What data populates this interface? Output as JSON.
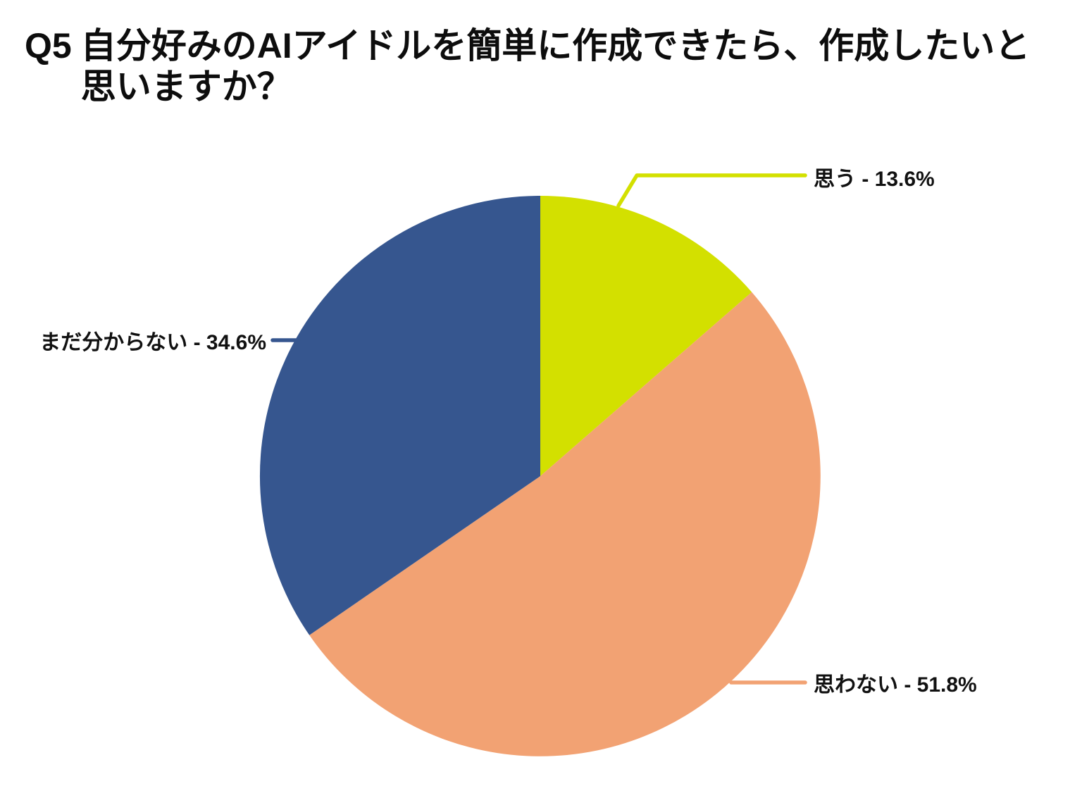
{
  "background": "#ffffff",
  "title": {
    "q_label": "Q5",
    "line1": "自分好みのAIアイドルを簡単に作成できたら、作成したいと",
    "line2": "思いますか？"
  },
  "chart_data": {
    "type": "pie",
    "title": "Q5 自分好みのAIアイドルを簡単に作成できたら、作成したいと思いますか？",
    "categories": [
      "思う",
      "思わない",
      "まだ分からない"
    ],
    "values": [
      13.6,
      51.8,
      34.6
    ],
    "unit": "%",
    "start_angle": "top",
    "direction": "clockwise",
    "legend_position": "none",
    "slices": [
      {
        "label": "思う",
        "value": 13.6,
        "color": "#d3e000",
        "display": "思う - 13.6%"
      },
      {
        "label": "思わない",
        "value": 51.8,
        "color": "#f2a273",
        "display": "思わない - 51.8%"
      },
      {
        "label": "まだ分からない",
        "value": 34.6,
        "color": "#36568f",
        "display": "まだ分からない - 34.6%"
      }
    ],
    "text_color": "#111111"
  }
}
